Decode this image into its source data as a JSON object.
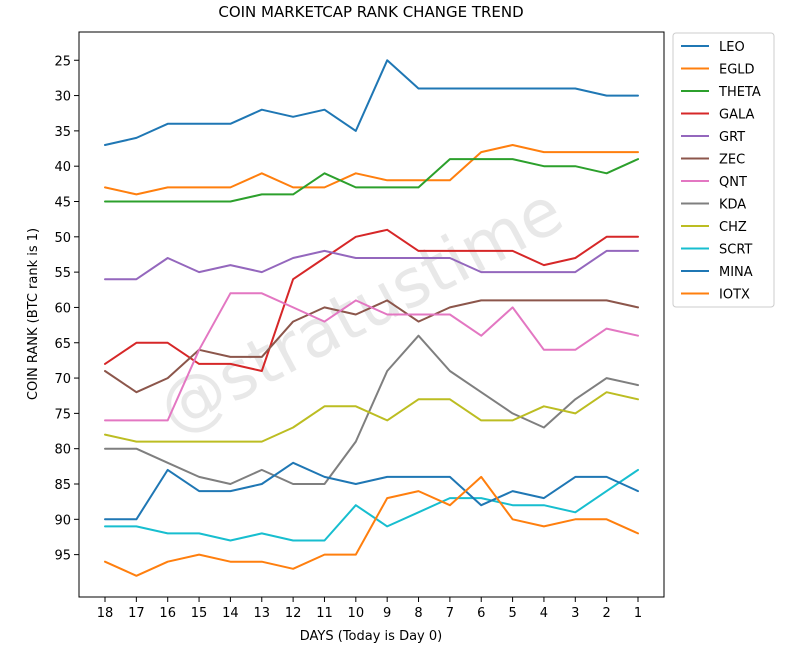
{
  "chart_data": {
    "type": "line",
    "title": "COIN MARKETCAP RANK CHANGE TREND",
    "xlabel": "DAYS (Today is Day 0)",
    "ylabel": "COIN RANK (BTC rank is 1)",
    "x": [
      18,
      17,
      16,
      15,
      14,
      13,
      12,
      11,
      10,
      9,
      8,
      7,
      6,
      5,
      4,
      3,
      2,
      1
    ],
    "x_ticks": [
      "18",
      "17",
      "16",
      "15",
      "14",
      "13",
      "12",
      "11",
      "10",
      "9",
      "8",
      "7",
      "6",
      "5",
      "4",
      "3",
      "2",
      "1"
    ],
    "y_ticks": [
      "25",
      "30",
      "35",
      "40",
      "45",
      "50",
      "55",
      "60",
      "65",
      "70",
      "75",
      "80",
      "85",
      "90",
      "95"
    ],
    "y_tick_values": [
      25,
      30,
      35,
      40,
      45,
      50,
      55,
      60,
      65,
      70,
      75,
      80,
      85,
      90,
      95
    ],
    "ylim": [
      101,
      21
    ],
    "y_inverted": true,
    "grid": false,
    "legend_position": "outside-right",
    "watermark": "@stratustime",
    "series": [
      {
        "name": "LEO",
        "color": "#1f77b4",
        "values": [
          37,
          36,
          34,
          34,
          34,
          32,
          33,
          32,
          35,
          25,
          29,
          29,
          29,
          29,
          29,
          29,
          30,
          30
        ]
      },
      {
        "name": "EGLD",
        "color": "#ff7f0e",
        "values": [
          43,
          44,
          43,
          43,
          43,
          41,
          43,
          43,
          41,
          42,
          42,
          42,
          38,
          37,
          38,
          38,
          38,
          38
        ]
      },
      {
        "name": "THETA",
        "color": "#2ca02c",
        "values": [
          45,
          45,
          45,
          45,
          45,
          44,
          44,
          41,
          43,
          43,
          43,
          39,
          39,
          39,
          40,
          40,
          41,
          39
        ]
      },
      {
        "name": "GALA",
        "color": "#d62728",
        "values": [
          68,
          65,
          65,
          68,
          68,
          69,
          56,
          53,
          50,
          49,
          52,
          52,
          52,
          52,
          54,
          53,
          50,
          50
        ]
      },
      {
        "name": "GRT",
        "color": "#9467bd",
        "values": [
          56,
          56,
          53,
          55,
          54,
          55,
          53,
          52,
          53,
          53,
          53,
          53,
          55,
          55,
          55,
          55,
          52,
          52
        ]
      },
      {
        "name": "ZEC",
        "color": "#8c564b",
        "values": [
          69,
          72,
          70,
          66,
          67,
          67,
          62,
          60,
          61,
          59,
          62,
          60,
          59,
          59,
          59,
          59,
          59,
          60
        ]
      },
      {
        "name": "QNT",
        "color": "#e377c2",
        "values": [
          76,
          76,
          76,
          66,
          58,
          58,
          60,
          62,
          59,
          61,
          61,
          61,
          64,
          60,
          66,
          66,
          63,
          64
        ]
      },
      {
        "name": "KDA",
        "color": "#7f7f7f",
        "values": [
          80,
          80,
          82,
          84,
          85,
          83,
          85,
          85,
          79,
          69,
          64,
          69,
          72,
          75,
          77,
          73,
          70,
          71
        ]
      },
      {
        "name": "CHZ",
        "color": "#bcbd22",
        "values": [
          78,
          79,
          79,
          79,
          79,
          79,
          77,
          74,
          74,
          76,
          73,
          73,
          76,
          76,
          74,
          75,
          72,
          73
        ]
      },
      {
        "name": "SCRT",
        "color": "#17becf",
        "values": [
          91,
          91,
          92,
          92,
          93,
          92,
          93,
          93,
          88,
          91,
          89,
          87,
          87,
          88,
          88,
          89,
          86,
          83
        ]
      },
      {
        "name": "MINA",
        "color": "#1f77b4",
        "values": [
          90,
          90,
          83,
          86,
          86,
          85,
          82,
          84,
          85,
          84,
          84,
          84,
          88,
          86,
          87,
          84,
          84,
          86
        ]
      },
      {
        "name": "IOTX",
        "color": "#ff7f0e",
        "values": [
          96,
          98,
          96,
          95,
          96,
          96,
          97,
          95,
          95,
          87,
          86,
          88,
          84,
          90,
          91,
          90,
          90,
          92
        ]
      }
    ]
  }
}
